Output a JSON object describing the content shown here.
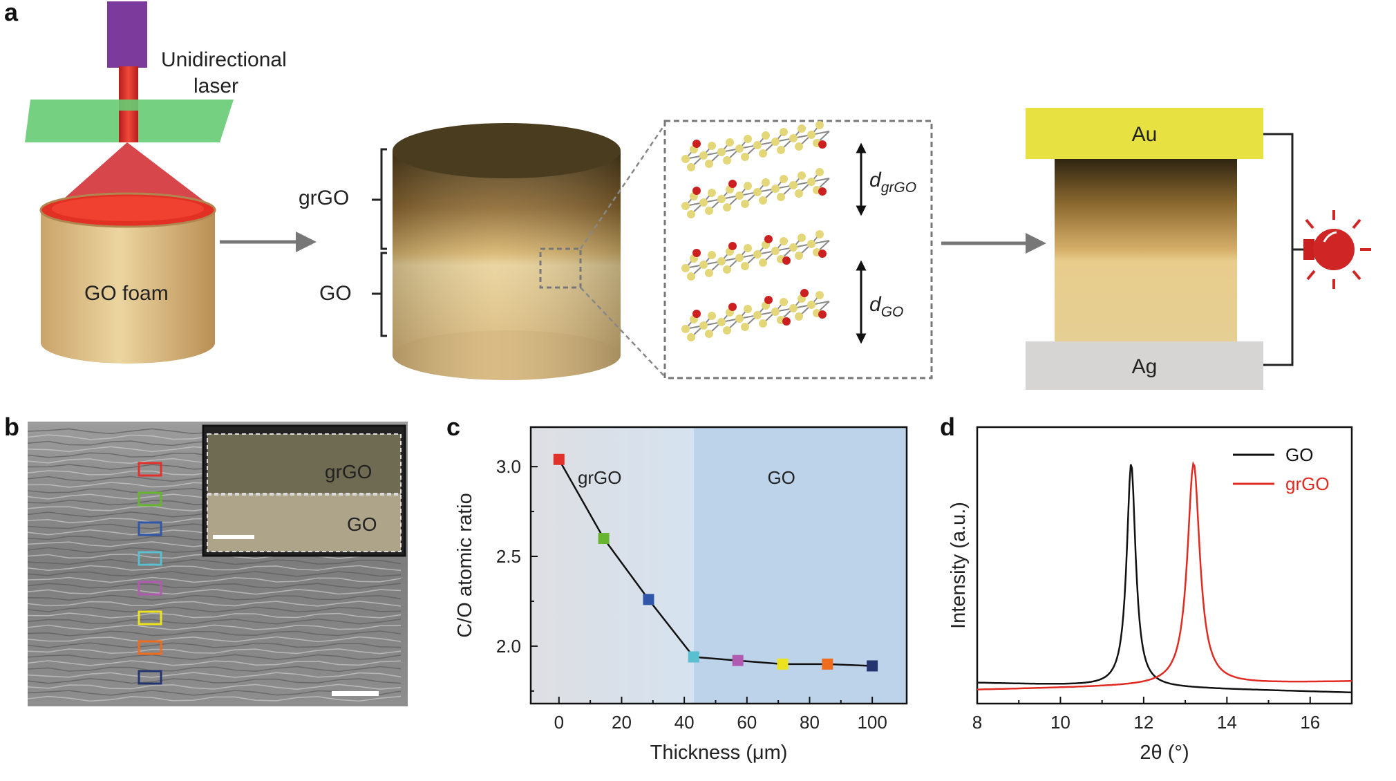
{
  "panel_a": {
    "label": "a",
    "laser_label_line1": "Unidirectional",
    "laser_label_line2": "laser",
    "foam_label": "GO foam",
    "layer_top": "grGO",
    "layer_bottom": "GO",
    "spacing_top_main": "d",
    "spacing_top_sub": "grGO",
    "spacing_bottom_main": "d",
    "spacing_bottom_sub": "GO",
    "electrode_top": "Au",
    "electrode_bottom": "Ag"
  },
  "panel_b": {
    "label": "b",
    "inset_top": "grGO",
    "inset_bottom": "GO"
  },
  "panel_d": {
    "label": "d"
  },
  "chart_data": [
    {
      "panel": "c",
      "type": "line",
      "xlabel": "Thickness (μm)",
      "ylabel": "C/O atomic ratio",
      "xlim": [
        -9,
        111
      ],
      "ylim": [
        1.68,
        3.22
      ],
      "xticks": [
        0,
        20,
        40,
        60,
        80,
        100
      ],
      "xtick_labels": [
        "0",
        "20",
        "40",
        "60",
        "80",
        "100"
      ],
      "yticks": [
        2.0,
        2.5,
        3.0
      ],
      "ytick_labels": [
        "2.0",
        "2.5",
        "3.0"
      ],
      "region_labels": [
        "grGO",
        "GO"
      ],
      "region_boundary": 43,
      "x": [
        0,
        14.3,
        28.6,
        43,
        57.1,
        71.4,
        85.7,
        100
      ],
      "values": [
        3.04,
        2.6,
        2.26,
        1.94,
        1.92,
        1.9,
        1.9,
        1.89
      ],
      "marker_colors": [
        "#e3302b",
        "#67b52e",
        "#2f56a8",
        "#5ac0d0",
        "#b05bb0",
        "#ece21f",
        "#ee6c1c",
        "#23346e"
      ]
    },
    {
      "panel": "d",
      "type": "line",
      "xlabel": "2θ (°)",
      "ylabel": "Intensity (a.u.)",
      "xlim": [
        8,
        17
      ],
      "xticks": [
        8,
        10,
        12,
        14,
        16
      ],
      "xtick_labels": [
        "8",
        "10",
        "12",
        "14",
        "16"
      ],
      "series": [
        {
          "name": "GO",
          "color": "#111111",
          "peak": 11.7,
          "width": 0.26,
          "baseline_start": 0.075,
          "baseline_end": 0.04
        },
        {
          "name": "grGO",
          "color": "#e02a22",
          "peak": 13.2,
          "width": 0.36,
          "baseline_start": 0.05,
          "baseline_end": 0.08
        }
      ]
    }
  ]
}
